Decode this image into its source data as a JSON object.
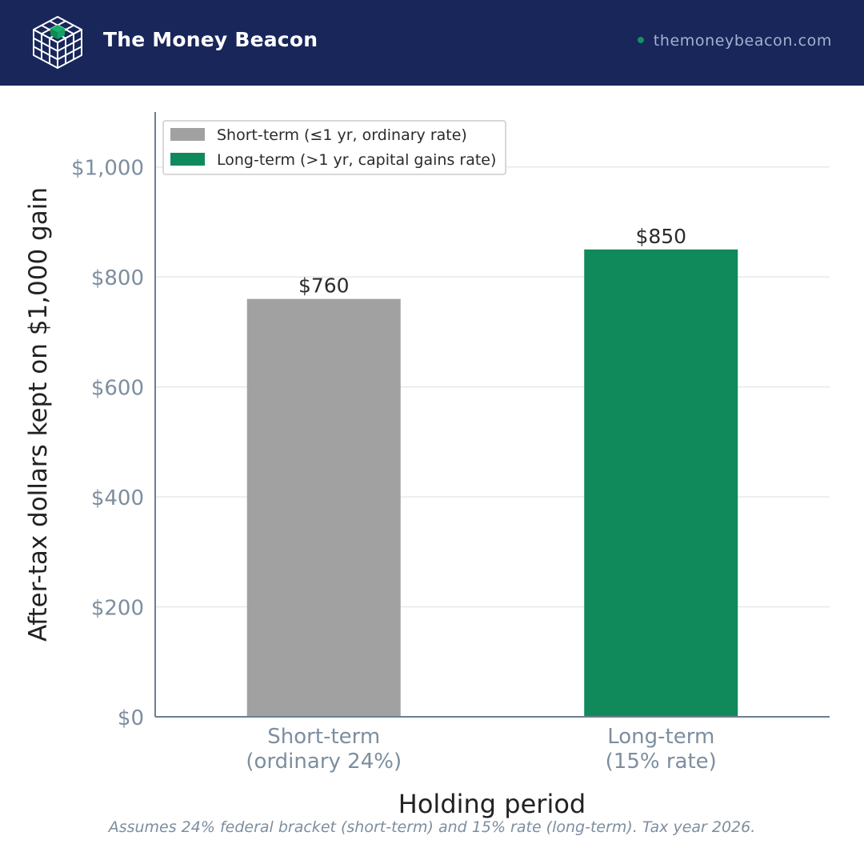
{
  "header": {
    "brand": "The Money Beacon",
    "site_url": "themoneybeacon.com",
    "logo_icon": "cube-grid-logo-icon",
    "bg_color": "#18265a",
    "dot_color": "#13925f"
  },
  "chart_data": {
    "type": "bar",
    "categories": [
      "Short-term\n(ordinary 24%)",
      "Long-term\n(15% rate)"
    ],
    "values": [
      760,
      850
    ],
    "value_labels": [
      "$760",
      "$850"
    ],
    "bar_colors": [
      "#a1a1a1",
      "#10895b"
    ],
    "xlabel": "Holding period",
    "ylabel": "After-tax dollars kept on $1,000 gain",
    "ylim": [
      0,
      1100
    ],
    "yticks": [
      0,
      200,
      400,
      600,
      800,
      1000
    ],
    "ytick_labels": [
      "$0",
      "$200",
      "$400",
      "$600",
      "$800",
      "$1,000"
    ],
    "grid": true,
    "legend": {
      "placement": "top-left",
      "entries": [
        {
          "label": "Short-term (≤1 yr, ordinary rate)",
          "color": "#a1a1a1"
        },
        {
          "label": "Long-term (>1 yr, capital gains rate)",
          "color": "#10895b"
        }
      ]
    }
  },
  "footnote": "Assumes 24% federal bracket (short-term) and 15% rate (long-term). Tax year 2026."
}
